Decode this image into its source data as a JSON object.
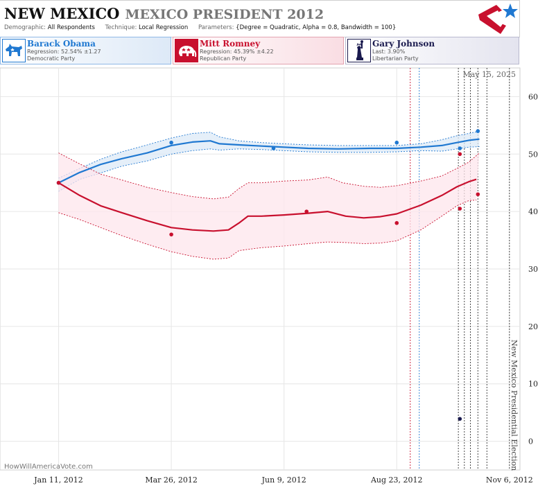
{
  "header": {
    "state": "NEW MEXICO",
    "race": "MEXICO PRESIDENT 2012",
    "demographic_label": "Demographic:",
    "demographic_value": "All Respondents",
    "technique_label": "Technique:",
    "technique_value": "Local Regression",
    "parameters_label": "Parameters:",
    "parameters_value": "{Degree = Quadratic, Alpha = 0.8, Bandwidth = 100}"
  },
  "candidates": [
    {
      "name": "Barack Obama",
      "line1": "Regression: 52.54% ±1.27",
      "line2": "Democratic Party",
      "color": "#1f78d1",
      "icon": "donkey-icon"
    },
    {
      "name": "Mitt Romney",
      "line1": "Regression: 45.39% ±4.22",
      "line2": "Republican Party",
      "color": "#c8102e",
      "icon": "elephant-icon"
    },
    {
      "name": "Gary Johnson",
      "line1": "Last: 3.90%",
      "line2": "Libertarian Party",
      "color": "#1a1a4e",
      "icon": "statue-of-liberty-icon"
    }
  ],
  "watermark": "HowWillAmericaVote.com",
  "chart_data": {
    "type": "line",
    "date_label": "May 15, 2025",
    "election_label": "New Mexico Presidential Election",
    "x_ticks": [
      "Jan 11, 2012",
      "Mar 26, 2012",
      "Jun 9, 2012",
      "Aug 23, 2012",
      "Nov 6, 2012"
    ],
    "y_ticks": [
      0,
      10,
      20,
      30,
      40,
      50,
      60
    ],
    "ylim": [
      -5,
      65
    ],
    "xlim": [
      "2011-12-03",
      "2012-11-13"
    ],
    "grid": true,
    "markers": [
      {
        "date": "2012-09-01",
        "color": "#c8102e"
      },
      {
        "date": "2012-09-07",
        "color": "#1f78d1"
      },
      {
        "date": "2012-10-03",
        "color": "#333333"
      },
      {
        "date": "2012-10-07",
        "color": "#333333"
      },
      {
        "date": "2012-10-11",
        "color": "#333333"
      },
      {
        "date": "2012-10-16",
        "color": "#333333"
      },
      {
        "date": "2012-10-22",
        "color": "#333333"
      },
      {
        "date": "2012-11-06",
        "color": "#333333"
      }
    ],
    "series": [
      {
        "name": "Barack Obama",
        "color": "#1f78d1",
        "band_color": "#dce9f7",
        "trend": [
          [
            "2012-01-11",
            45.0
          ],
          [
            "2012-01-25",
            46.8
          ],
          [
            "2012-02-08",
            48.2
          ],
          [
            "2012-02-22",
            49.2
          ],
          [
            "2012-03-10",
            50.2
          ],
          [
            "2012-03-26",
            51.5
          ],
          [
            "2012-04-09",
            52.1
          ],
          [
            "2012-04-21",
            52.3
          ],
          [
            "2012-04-27",
            51.8
          ],
          [
            "2012-05-10",
            51.6
          ],
          [
            "2012-05-25",
            51.4
          ],
          [
            "2012-06-09",
            51.2
          ],
          [
            "2012-06-25",
            51.0
          ],
          [
            "2012-07-15",
            50.9
          ],
          [
            "2012-08-05",
            51.0
          ],
          [
            "2012-08-23",
            51.0
          ],
          [
            "2012-09-08",
            51.2
          ],
          [
            "2012-09-22",
            51.5
          ],
          [
            "2012-10-02",
            52.0
          ],
          [
            "2012-10-10",
            52.4
          ],
          [
            "2012-10-17",
            52.6
          ]
        ],
        "upper": [
          [
            "2012-01-11",
            45.8
          ],
          [
            "2012-01-25",
            47.5
          ],
          [
            "2012-02-08",
            49.1
          ],
          [
            "2012-02-22",
            50.4
          ],
          [
            "2012-03-10",
            51.6
          ],
          [
            "2012-03-26",
            52.8
          ],
          [
            "2012-04-09",
            53.6
          ],
          [
            "2012-04-21",
            53.8
          ],
          [
            "2012-04-27",
            53.0
          ],
          [
            "2012-05-10",
            52.3
          ],
          [
            "2012-05-25",
            52.0
          ],
          [
            "2012-06-09",
            51.8
          ],
          [
            "2012-06-25",
            51.6
          ],
          [
            "2012-07-15",
            51.5
          ],
          [
            "2012-08-05",
            51.5
          ],
          [
            "2012-08-23",
            51.5
          ],
          [
            "2012-09-08",
            51.8
          ],
          [
            "2012-09-22",
            52.5
          ],
          [
            "2012-10-02",
            53.2
          ],
          [
            "2012-10-10",
            53.6
          ],
          [
            "2012-10-17",
            54.0
          ]
        ],
        "lower": [
          [
            "2012-01-11",
            43.5
          ],
          [
            "2012-01-25",
            45.6
          ],
          [
            "2012-02-08",
            46.7
          ],
          [
            "2012-02-22",
            47.9
          ],
          [
            "2012-03-10",
            48.8
          ],
          [
            "2012-03-26",
            50.0
          ],
          [
            "2012-04-09",
            50.6
          ],
          [
            "2012-04-21",
            50.9
          ],
          [
            "2012-04-27",
            50.7
          ],
          [
            "2012-05-10",
            50.9
          ],
          [
            "2012-05-25",
            50.8
          ],
          [
            "2012-06-09",
            50.6
          ],
          [
            "2012-06-25",
            50.4
          ],
          [
            "2012-07-15",
            50.3
          ],
          [
            "2012-08-05",
            50.3
          ],
          [
            "2012-08-23",
            50.4
          ],
          [
            "2012-09-08",
            50.6
          ],
          [
            "2012-09-22",
            50.5
          ],
          [
            "2012-10-02",
            50.9
          ],
          [
            "2012-10-10",
            51.2
          ],
          [
            "2012-10-17",
            51.3
          ]
        ],
        "polls": [
          [
            "2012-01-11",
            45.0
          ],
          [
            "2012-03-26",
            52.0
          ],
          [
            "2012-06-02",
            51.0
          ],
          [
            "2012-08-23",
            52.0
          ],
          [
            "2012-10-04",
            51.0
          ],
          [
            "2012-10-16",
            54.0
          ]
        ]
      },
      {
        "name": "Mitt Romney",
        "color": "#c8102e",
        "band_color": "#fde6ec",
        "trend": [
          [
            "2012-01-11",
            45.0
          ],
          [
            "2012-01-25",
            42.8
          ],
          [
            "2012-02-08",
            41.0
          ],
          [
            "2012-02-22",
            39.8
          ],
          [
            "2012-03-10",
            38.4
          ],
          [
            "2012-03-26",
            37.2
          ],
          [
            "2012-04-09",
            36.8
          ],
          [
            "2012-04-23",
            36.6
          ],
          [
            "2012-05-03",
            36.8
          ],
          [
            "2012-05-10",
            38.0
          ],
          [
            "2012-05-16",
            39.2
          ],
          [
            "2012-05-25",
            39.2
          ],
          [
            "2012-06-09",
            39.4
          ],
          [
            "2012-06-25",
            39.7
          ],
          [
            "2012-07-08",
            40.0
          ],
          [
            "2012-07-20",
            39.2
          ],
          [
            "2012-08-01",
            38.9
          ],
          [
            "2012-08-12",
            39.1
          ],
          [
            "2012-08-23",
            39.6
          ],
          [
            "2012-09-08",
            41.1
          ],
          [
            "2012-09-22",
            42.8
          ],
          [
            "2012-10-02",
            44.3
          ],
          [
            "2012-10-10",
            45.2
          ],
          [
            "2012-10-15",
            45.6
          ]
        ],
        "upper": [
          [
            "2012-01-11",
            50.2
          ],
          [
            "2012-01-25",
            48.3
          ],
          [
            "2012-02-08",
            46.5
          ],
          [
            "2012-02-22",
            45.5
          ],
          [
            "2012-03-10",
            44.2
          ],
          [
            "2012-03-26",
            43.3
          ],
          [
            "2012-04-09",
            42.6
          ],
          [
            "2012-04-23",
            42.2
          ],
          [
            "2012-05-03",
            42.5
          ],
          [
            "2012-05-10",
            44.0
          ],
          [
            "2012-05-16",
            45.0
          ],
          [
            "2012-05-25",
            45.0
          ],
          [
            "2012-06-09",
            45.3
          ],
          [
            "2012-06-25",
            45.5
          ],
          [
            "2012-07-08",
            46.0
          ],
          [
            "2012-07-18",
            45.0
          ],
          [
            "2012-08-01",
            44.4
          ],
          [
            "2012-08-12",
            44.2
          ],
          [
            "2012-08-23",
            44.5
          ],
          [
            "2012-09-08",
            45.3
          ],
          [
            "2012-09-22",
            46.2
          ],
          [
            "2012-10-02",
            47.5
          ],
          [
            "2012-10-10",
            48.6
          ],
          [
            "2012-10-17",
            50.2
          ]
        ],
        "lower": [
          [
            "2012-01-11",
            39.8
          ],
          [
            "2012-01-25",
            38.6
          ],
          [
            "2012-02-08",
            37.2
          ],
          [
            "2012-02-22",
            35.8
          ],
          [
            "2012-03-10",
            34.3
          ],
          [
            "2012-03-26",
            33.0
          ],
          [
            "2012-04-09",
            32.2
          ],
          [
            "2012-04-23",
            31.7
          ],
          [
            "2012-05-03",
            31.9
          ],
          [
            "2012-05-10",
            33.2
          ],
          [
            "2012-05-16",
            33.4
          ],
          [
            "2012-05-25",
            33.7
          ],
          [
            "2012-06-09",
            34.0
          ],
          [
            "2012-06-25",
            34.4
          ],
          [
            "2012-07-08",
            34.7
          ],
          [
            "2012-07-20",
            34.6
          ],
          [
            "2012-08-01",
            34.4
          ],
          [
            "2012-08-12",
            34.5
          ],
          [
            "2012-08-23",
            34.9
          ],
          [
            "2012-09-08",
            36.8
          ],
          [
            "2012-09-22",
            39.2
          ],
          [
            "2012-10-02",
            41.0
          ],
          [
            "2012-10-10",
            41.9
          ],
          [
            "2012-10-15",
            42.0
          ]
        ],
        "polls": [
          [
            "2012-01-11",
            45.0
          ],
          [
            "2012-03-26",
            36.0
          ],
          [
            "2012-06-24",
            40.0
          ],
          [
            "2012-08-23",
            38.0
          ],
          [
            "2012-10-04",
            40.5
          ],
          [
            "2012-10-04",
            50.0
          ],
          [
            "2012-10-16",
            43.0
          ]
        ]
      },
      {
        "name": "Gary Johnson",
        "color": "#1a1a4e",
        "polls": [
          [
            "2012-10-04",
            3.9
          ]
        ]
      }
    ]
  }
}
